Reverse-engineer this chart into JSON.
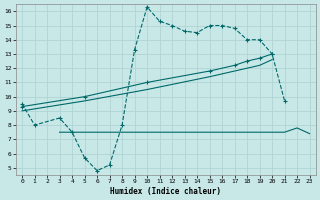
{
  "xlabel": "Humidex (Indice chaleur)",
  "bg_color": "#c8e8e8",
  "grid_color": "#afd4d4",
  "line_color": "#006868",
  "xlim": [
    -0.5,
    23.5
  ],
  "ylim": [
    4.5,
    16.5
  ],
  "xticks": [
    0,
    1,
    2,
    3,
    4,
    5,
    6,
    7,
    8,
    9,
    10,
    11,
    12,
    13,
    14,
    15,
    16,
    17,
    18,
    19,
    20,
    21,
    22,
    23
  ],
  "yticks": [
    5,
    6,
    7,
    8,
    9,
    10,
    11,
    12,
    13,
    14,
    15,
    16
  ],
  "line_wiggly_x": [
    0,
    1,
    3,
    4,
    5,
    6,
    7,
    8,
    9,
    10,
    11,
    12,
    13,
    14,
    15,
    16,
    17,
    18,
    19,
    20,
    21
  ],
  "line_wiggly_y": [
    9.5,
    8.0,
    8.5,
    7.5,
    5.7,
    4.8,
    5.2,
    8.0,
    13.3,
    16.3,
    15.3,
    15.0,
    14.6,
    14.5,
    15.0,
    15.0,
    14.8,
    14.0,
    14.0,
    13.0,
    9.7
  ],
  "line_diag1_x": [
    0,
    5,
    10,
    15,
    17,
    18,
    19,
    20
  ],
  "line_diag1_y": [
    9.3,
    10.0,
    11.0,
    11.8,
    12.2,
    12.5,
    12.7,
    13.0
  ],
  "line_diag2_x": [
    0,
    5,
    10,
    15,
    17,
    18,
    19,
    20
  ],
  "line_diag2_y": [
    9.0,
    9.7,
    10.5,
    11.4,
    11.8,
    12.0,
    12.2,
    12.6
  ],
  "line_flat_x": [
    3,
    4,
    5,
    6,
    7,
    8,
    9,
    10,
    11,
    12,
    13,
    14,
    15,
    16,
    17,
    20,
    21,
    22,
    23
  ],
  "line_flat_y": [
    7.5,
    7.5,
    7.5,
    7.5,
    7.5,
    7.5,
    7.5,
    7.5,
    7.5,
    7.5,
    7.5,
    7.5,
    7.5,
    7.5,
    7.5,
    7.5,
    7.5,
    7.8,
    7.4
  ]
}
